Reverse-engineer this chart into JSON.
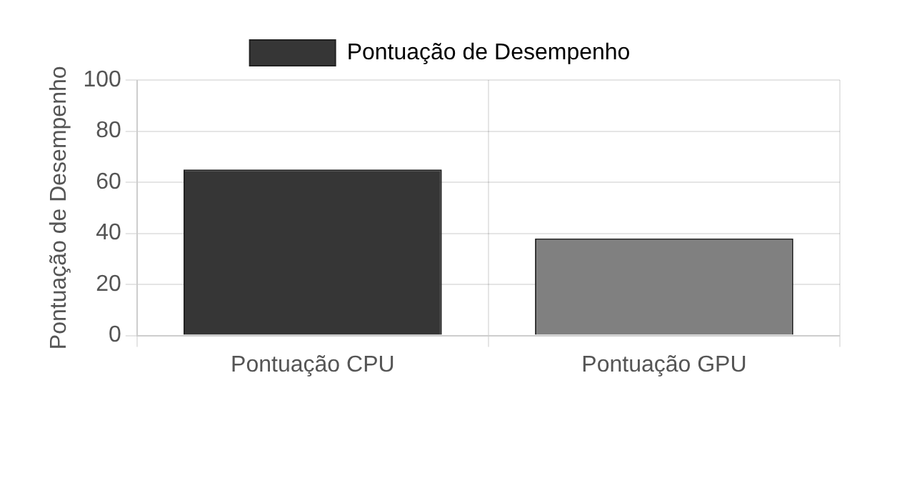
{
  "chart_data": {
    "type": "bar",
    "ylabel": "Pontuação de Desempenho",
    "categories": [
      "Pontuação CPU",
      "Pontuação GPU"
    ],
    "series": [
      {
        "name": "Pontuação de Desempenho",
        "colors": [
          "#363636",
          "#808080"
        ],
        "values": [
          65,
          38
        ]
      }
    ],
    "ylim": [
      0,
      100
    ],
    "yticks": [
      0,
      20,
      40,
      60,
      80,
      100
    ],
    "grid": true,
    "legend": "top"
  }
}
